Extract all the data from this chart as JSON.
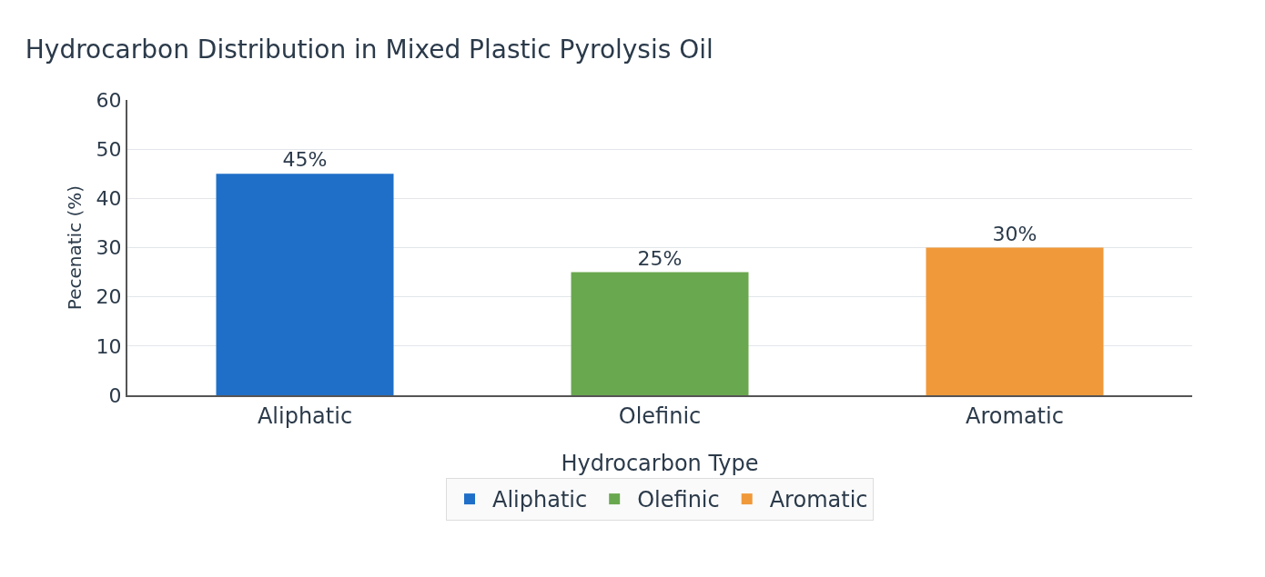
{
  "chart_data": {
    "type": "bar",
    "title": "Hydrocarbon Distribution in Mixed Plastic Pyrolysis Oil",
    "xlabel": "Hydrocarbon Type",
    "ylabel": "Pecenatic (%)",
    "categories": [
      "Aliphatic",
      "Olefinic",
      "Aromatic"
    ],
    "series": [
      {
        "name": "Aliphatic",
        "color": "#1f6fc8",
        "values": [
          45,
          null,
          null
        ],
        "value_labels": [
          "45%",
          null,
          null
        ]
      },
      {
        "name": "Olefinic",
        "color": "#6aa84f",
        "values": [
          null,
          25,
          null
        ],
        "value_labels": [
          null,
          "25%",
          null
        ]
      },
      {
        "name": "Aromatic",
        "color": "#f0993a",
        "values": [
          null,
          null,
          30
        ],
        "value_labels": [
          null,
          null,
          "30%"
        ]
      }
    ],
    "ylim": [
      0,
      60
    ],
    "yticks": [
      0,
      10,
      20,
      30,
      40,
      50,
      60
    ],
    "grid": "y",
    "legend": "bottom"
  }
}
